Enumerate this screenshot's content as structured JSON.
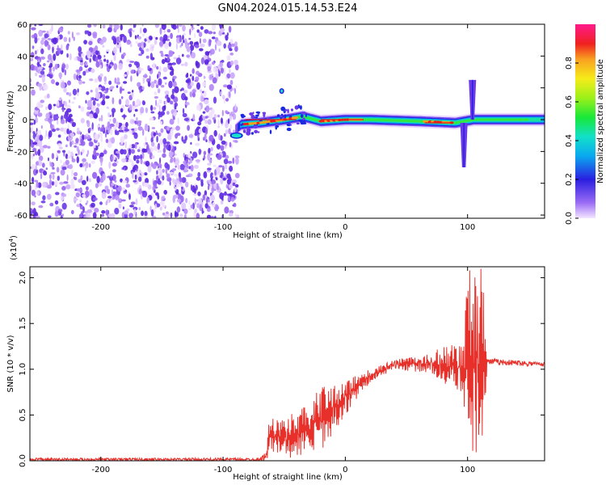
{
  "title": "GN04.2024.015.14.53.E24",
  "chart_data": [
    {
      "type": "heatmap",
      "name": "spectrogram",
      "xlabel": "Height of straight line (km)",
      "ylabel": "Frequency (Hz)",
      "xlim": [
        -258,
        163
      ],
      "ylim": [
        -62,
        60
      ],
      "xticks": [
        -200,
        -100,
        0,
        100
      ],
      "yticks": [
        -60,
        -40,
        -20,
        0,
        20,
        40,
        60
      ],
      "noise_region_x": [
        -258,
        -88
      ],
      "signal_band": [
        {
          "x": -95,
          "f": -10
        },
        {
          "x": -85,
          "f": -3
        },
        {
          "x": -70,
          "f": -2
        },
        {
          "x": -50,
          "f": 0
        },
        {
          "x": -35,
          "f": 2
        },
        {
          "x": -20,
          "f": -1
        },
        {
          "x": 0,
          "f": 0
        },
        {
          "x": 20,
          "f": 0
        },
        {
          "x": 60,
          "f": -1
        },
        {
          "x": 90,
          "f": -2
        },
        {
          "x": 105,
          "f": 0
        },
        {
          "x": 163,
          "f": 0
        }
      ],
      "peak_amplitude_segments": [
        {
          "x0": -82,
          "x1": -40,
          "f": 0
        },
        {
          "x0": -20,
          "x1": 15,
          "f": 0
        },
        {
          "x0": 65,
          "x1": 88,
          "f": -2
        }
      ],
      "spike_features": [
        {
          "x": 97,
          "f0": -30,
          "f1": -2
        },
        {
          "x": 104,
          "f0": 0,
          "f1": 25
        }
      ]
    },
    {
      "type": "colorbar",
      "label": "Normalized spectral amplitude",
      "range": [
        0.0,
        1.0
      ],
      "ticks": [
        0.0,
        0.2,
        0.4,
        0.6,
        0.8
      ]
    },
    {
      "type": "line",
      "name": "snr",
      "xlabel": "Height of straight line (km)",
      "ylabel": "SNR (10 * v/v)",
      "yscale_label": "(x10",
      "yscale_exp": "4",
      "yscale_close": ")",
      "xlim": [
        -258,
        163
      ],
      "ylim": [
        0,
        2.12
      ],
      "xticks": [
        -200,
        -100,
        0,
        100
      ],
      "yticks": [
        0.0,
        0.5,
        1.0,
        1.5,
        2.0
      ],
      "ytick_labels": [
        "0.0",
        "0.5",
        "1.0",
        "1.5",
        "2.0"
      ],
      "color": "#e8302a",
      "envelope": [
        {
          "x": -258,
          "lo": 0.0,
          "hi": 0.03
        },
        {
          "x": -70,
          "lo": 0.0,
          "hi": 0.03
        },
        {
          "x": -65,
          "lo": 0.0,
          "hi": 0.1
        },
        {
          "x": -62,
          "lo": 0.05,
          "hi": 0.5
        },
        {
          "x": -50,
          "lo": 0.05,
          "hi": 0.45
        },
        {
          "x": -40,
          "lo": 0.0,
          "hi": 0.55
        },
        {
          "x": -20,
          "lo": 0.1,
          "hi": 0.8
        },
        {
          "x": 0,
          "lo": 0.5,
          "hi": 0.9
        },
        {
          "x": 20,
          "lo": 0.85,
          "hi": 1.0
        },
        {
          "x": 40,
          "lo": 1.0,
          "hi": 1.1
        },
        {
          "x": 70,
          "lo": 0.95,
          "hi": 1.2
        },
        {
          "x": 95,
          "lo": 0.7,
          "hi": 1.3
        },
        {
          "x": 100,
          "lo": 0.05,
          "hi": 2.1
        },
        {
          "x": 112,
          "lo": 0.05,
          "hi": 2.1
        },
        {
          "x": 116,
          "lo": 1.05,
          "hi": 1.12
        },
        {
          "x": 163,
          "lo": 1.03,
          "hi": 1.08
        }
      ]
    }
  ]
}
